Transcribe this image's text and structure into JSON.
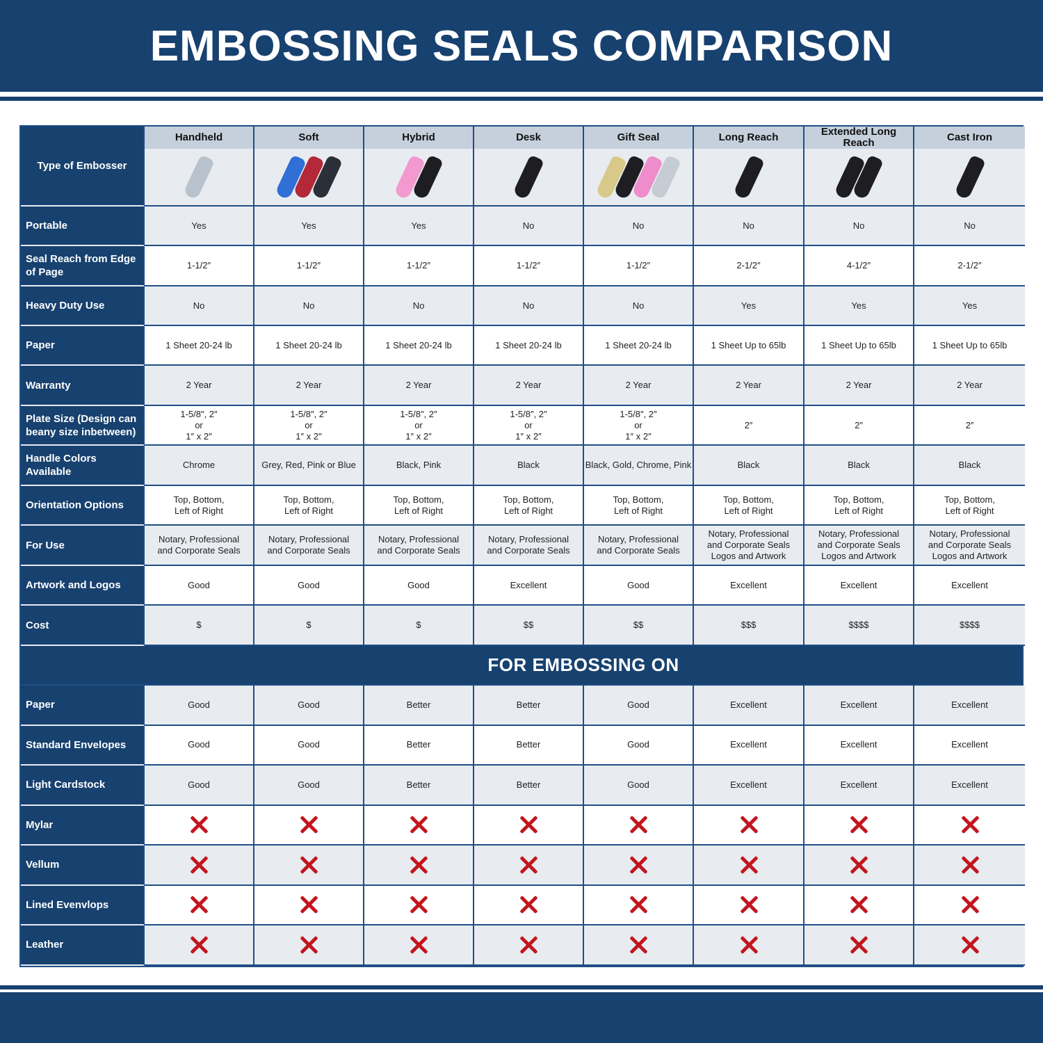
{
  "title": "EMBOSSING SEALS COMPARISON",
  "header_label": "Type of Embosser",
  "columns": [
    {
      "name": "Handheld",
      "colors": [
        "#b9c2cc"
      ]
    },
    {
      "name": "Soft",
      "colors": [
        "#2f6fd6",
        "#b3293a",
        "#2b2f38"
      ]
    },
    {
      "name": "Hybrid",
      "colors": [
        "#f29ad0",
        "#1d1d22"
      ]
    },
    {
      "name": "Desk",
      "colors": [
        "#1d1d22"
      ]
    },
    {
      "name": "Gift Seal",
      "colors": [
        "#d8c98a",
        "#1d1d22",
        "#ee8ccc",
        "#c5ccd4"
      ]
    },
    {
      "name": "Long Reach",
      "colors": [
        "#1d1d22"
      ]
    },
    {
      "name": "Extended Long Reach",
      "colors": [
        "#1d1d22",
        "#1d1d22"
      ]
    },
    {
      "name": "Cast Iron",
      "colors": [
        "#1d1d22"
      ]
    }
  ],
  "rows": [
    {
      "label": "Portable",
      "values": [
        "Yes",
        "Yes",
        "Yes",
        "No",
        "No",
        "No",
        "No",
        "No"
      ]
    },
    {
      "label": "Seal Reach from Edge of Page",
      "values": [
        "1-1/2″",
        "1-1/2″",
        "1-1/2″",
        "1-1/2″",
        "1-1/2″",
        "2-1/2″",
        "4-1/2″",
        "2-1/2″"
      ]
    },
    {
      "label": "Heavy Duty Use",
      "values": [
        "No",
        "No",
        "No",
        "No",
        "No",
        "Yes",
        "Yes",
        "Yes"
      ]
    },
    {
      "label": "Paper",
      "values": [
        "1 Sheet 20-24 lb",
        "1 Sheet 20-24 lb",
        "1 Sheet 20-24 lb",
        "1 Sheet 20-24 lb",
        "1 Sheet 20-24 lb",
        "1 Sheet Up to 65lb",
        "1 Sheet Up to 65lb",
        "1 Sheet Up to 65lb"
      ]
    },
    {
      "label": "Warranty",
      "values": [
        "2 Year",
        "2 Year",
        "2 Year",
        "2 Year",
        "2 Year",
        "2 Year",
        "2 Year",
        "2 Year"
      ]
    },
    {
      "label": "Plate Size (Design can beany size inbetween)",
      "values": [
        "1-5/8″, 2″\nor\n1″ x 2″",
        "1-5/8″, 2″\nor\n1″ x 2″",
        "1-5/8″, 2″\nor\n1″ x 2″",
        "1-5/8″, 2″\nor\n1″ x 2″",
        "1-5/8″, 2″\nor\n1″ x 2″",
        "2″",
        "2″",
        "2″"
      ]
    },
    {
      "label": "Handle Colors Available",
      "values": [
        "Chrome",
        "Grey, Red, Pink or Blue",
        "Black, Pink",
        "Black",
        "Black, Gold, Chrome, Pink",
        "Black",
        "Black",
        "Black"
      ]
    },
    {
      "label": "Orientation Options",
      "values": [
        "Top, Bottom,\nLeft of Right",
        "Top, Bottom,\nLeft of Right",
        "Top, Bottom,\nLeft of Right",
        "Top, Bottom,\nLeft of Right",
        "Top, Bottom,\nLeft of Right",
        "Top, Bottom,\nLeft of Right",
        "Top, Bottom,\nLeft of Right",
        "Top, Bottom,\nLeft of Right"
      ]
    },
    {
      "label": "For Use",
      "values": [
        "Notary, Professional\nand Corporate Seals",
        "Notary, Professional\nand Corporate Seals",
        "Notary, Professional\nand Corporate Seals",
        "Notary, Professional\nand Corporate Seals",
        "Notary, Professional\nand Corporate Seals",
        "Notary, Professional\nand Corporate Seals\nLogos and Artwork",
        "Notary, Professional\nand Corporate Seals\nLogos and Artwork",
        "Notary, Professional\nand Corporate Seals\nLogos and Artwork"
      ]
    },
    {
      "label": "Artwork and Logos",
      "values": [
        "Good",
        "Good",
        "Good",
        "Excellent",
        "Good",
        "Excellent",
        "Excellent",
        "Excellent"
      ]
    },
    {
      "label": "Cost",
      "values": [
        "$",
        "$",
        "$",
        "$$",
        "$$",
        "$$$",
        "$$$$",
        "$$$$"
      ]
    }
  ],
  "section_title": "FOR EMBOSSING ON",
  "embossing_rows": [
    {
      "label": "Paper",
      "values": [
        "Good",
        "Good",
        "Better",
        "Better",
        "Good",
        "Excellent",
        "Excellent",
        "Excellent"
      ]
    },
    {
      "label": "Standard Envelopes",
      "values": [
        "Good",
        "Good",
        "Better",
        "Better",
        "Good",
        "Excellent",
        "Excellent",
        "Excellent"
      ]
    },
    {
      "label": "Light Cardstock",
      "values": [
        "Good",
        "Good",
        "Better",
        "Better",
        "Good",
        "Excellent",
        "Excellent",
        "Excellent"
      ]
    },
    {
      "label": "Mylar",
      "values": [
        "x",
        "x",
        "x",
        "x",
        "x",
        "x",
        "x",
        "x"
      ]
    },
    {
      "label": "Vellum",
      "values": [
        "x",
        "x",
        "x",
        "x",
        "x",
        "x",
        "x",
        "x"
      ]
    },
    {
      "label": "Lined Evenvlops",
      "values": [
        "x",
        "x",
        "x",
        "x",
        "x",
        "x",
        "x",
        "x"
      ]
    },
    {
      "label": "Leather",
      "values": [
        "x",
        "x",
        "x",
        "x",
        "x",
        "x",
        "x",
        "x"
      ]
    }
  ],
  "not_supported_icon": "red-x-icon",
  "colors": {
    "brand": "#17416f",
    "x": "#c2161e"
  }
}
